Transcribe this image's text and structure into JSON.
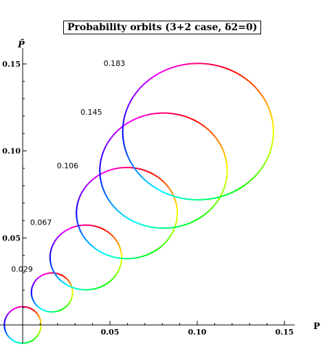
{
  "chart_data": {
    "type": "line",
    "title": "Probability orbits (3+2 case, δ2=0)",
    "xlabel": "P",
    "ylabel": "P̄",
    "xlim": [
      0,
      0.155
    ],
    "ylim": [
      0,
      0.155
    ],
    "x_ticks": [
      0.05,
      0.1,
      0.15
    ],
    "x_tick_labels": [
      "0.05",
      "0.10",
      "0.15"
    ],
    "y_ticks": [
      0.05,
      0.1,
      0.15
    ],
    "y_tick_labels": [
      "0.05",
      "0.10",
      "0.15"
    ],
    "grid": false,
    "color_scheme": "hue gradient along orbit (red→yellow→green→cyan→blue→magenta→red)",
    "series": [
      {
        "label": "",
        "center": [
          0.0,
          0.0
        ],
        "rx": 0.0105,
        "ry": 0.0105
      },
      {
        "label": "0.029",
        "center": [
          0.0168,
          0.0187
        ],
        "rx": 0.0118,
        "ry": 0.0112
      },
      {
        "label": "0.067",
        "center": [
          0.0362,
          0.0388
        ],
        "rx": 0.0205,
        "ry": 0.0186
      },
      {
        "label": "0.106",
        "center": [
          0.0597,
          0.0643
        ],
        "rx": 0.0289,
        "ry": 0.0262
      },
      {
        "label": "0.145",
        "center": [
          0.0807,
          0.0887
        ],
        "rx": 0.0365,
        "ry": 0.0331
      },
      {
        "label": "0.183",
        "center": [
          0.1005,
          0.1111
        ],
        "rx": 0.0432,
        "ry": 0.0392
      }
    ]
  }
}
